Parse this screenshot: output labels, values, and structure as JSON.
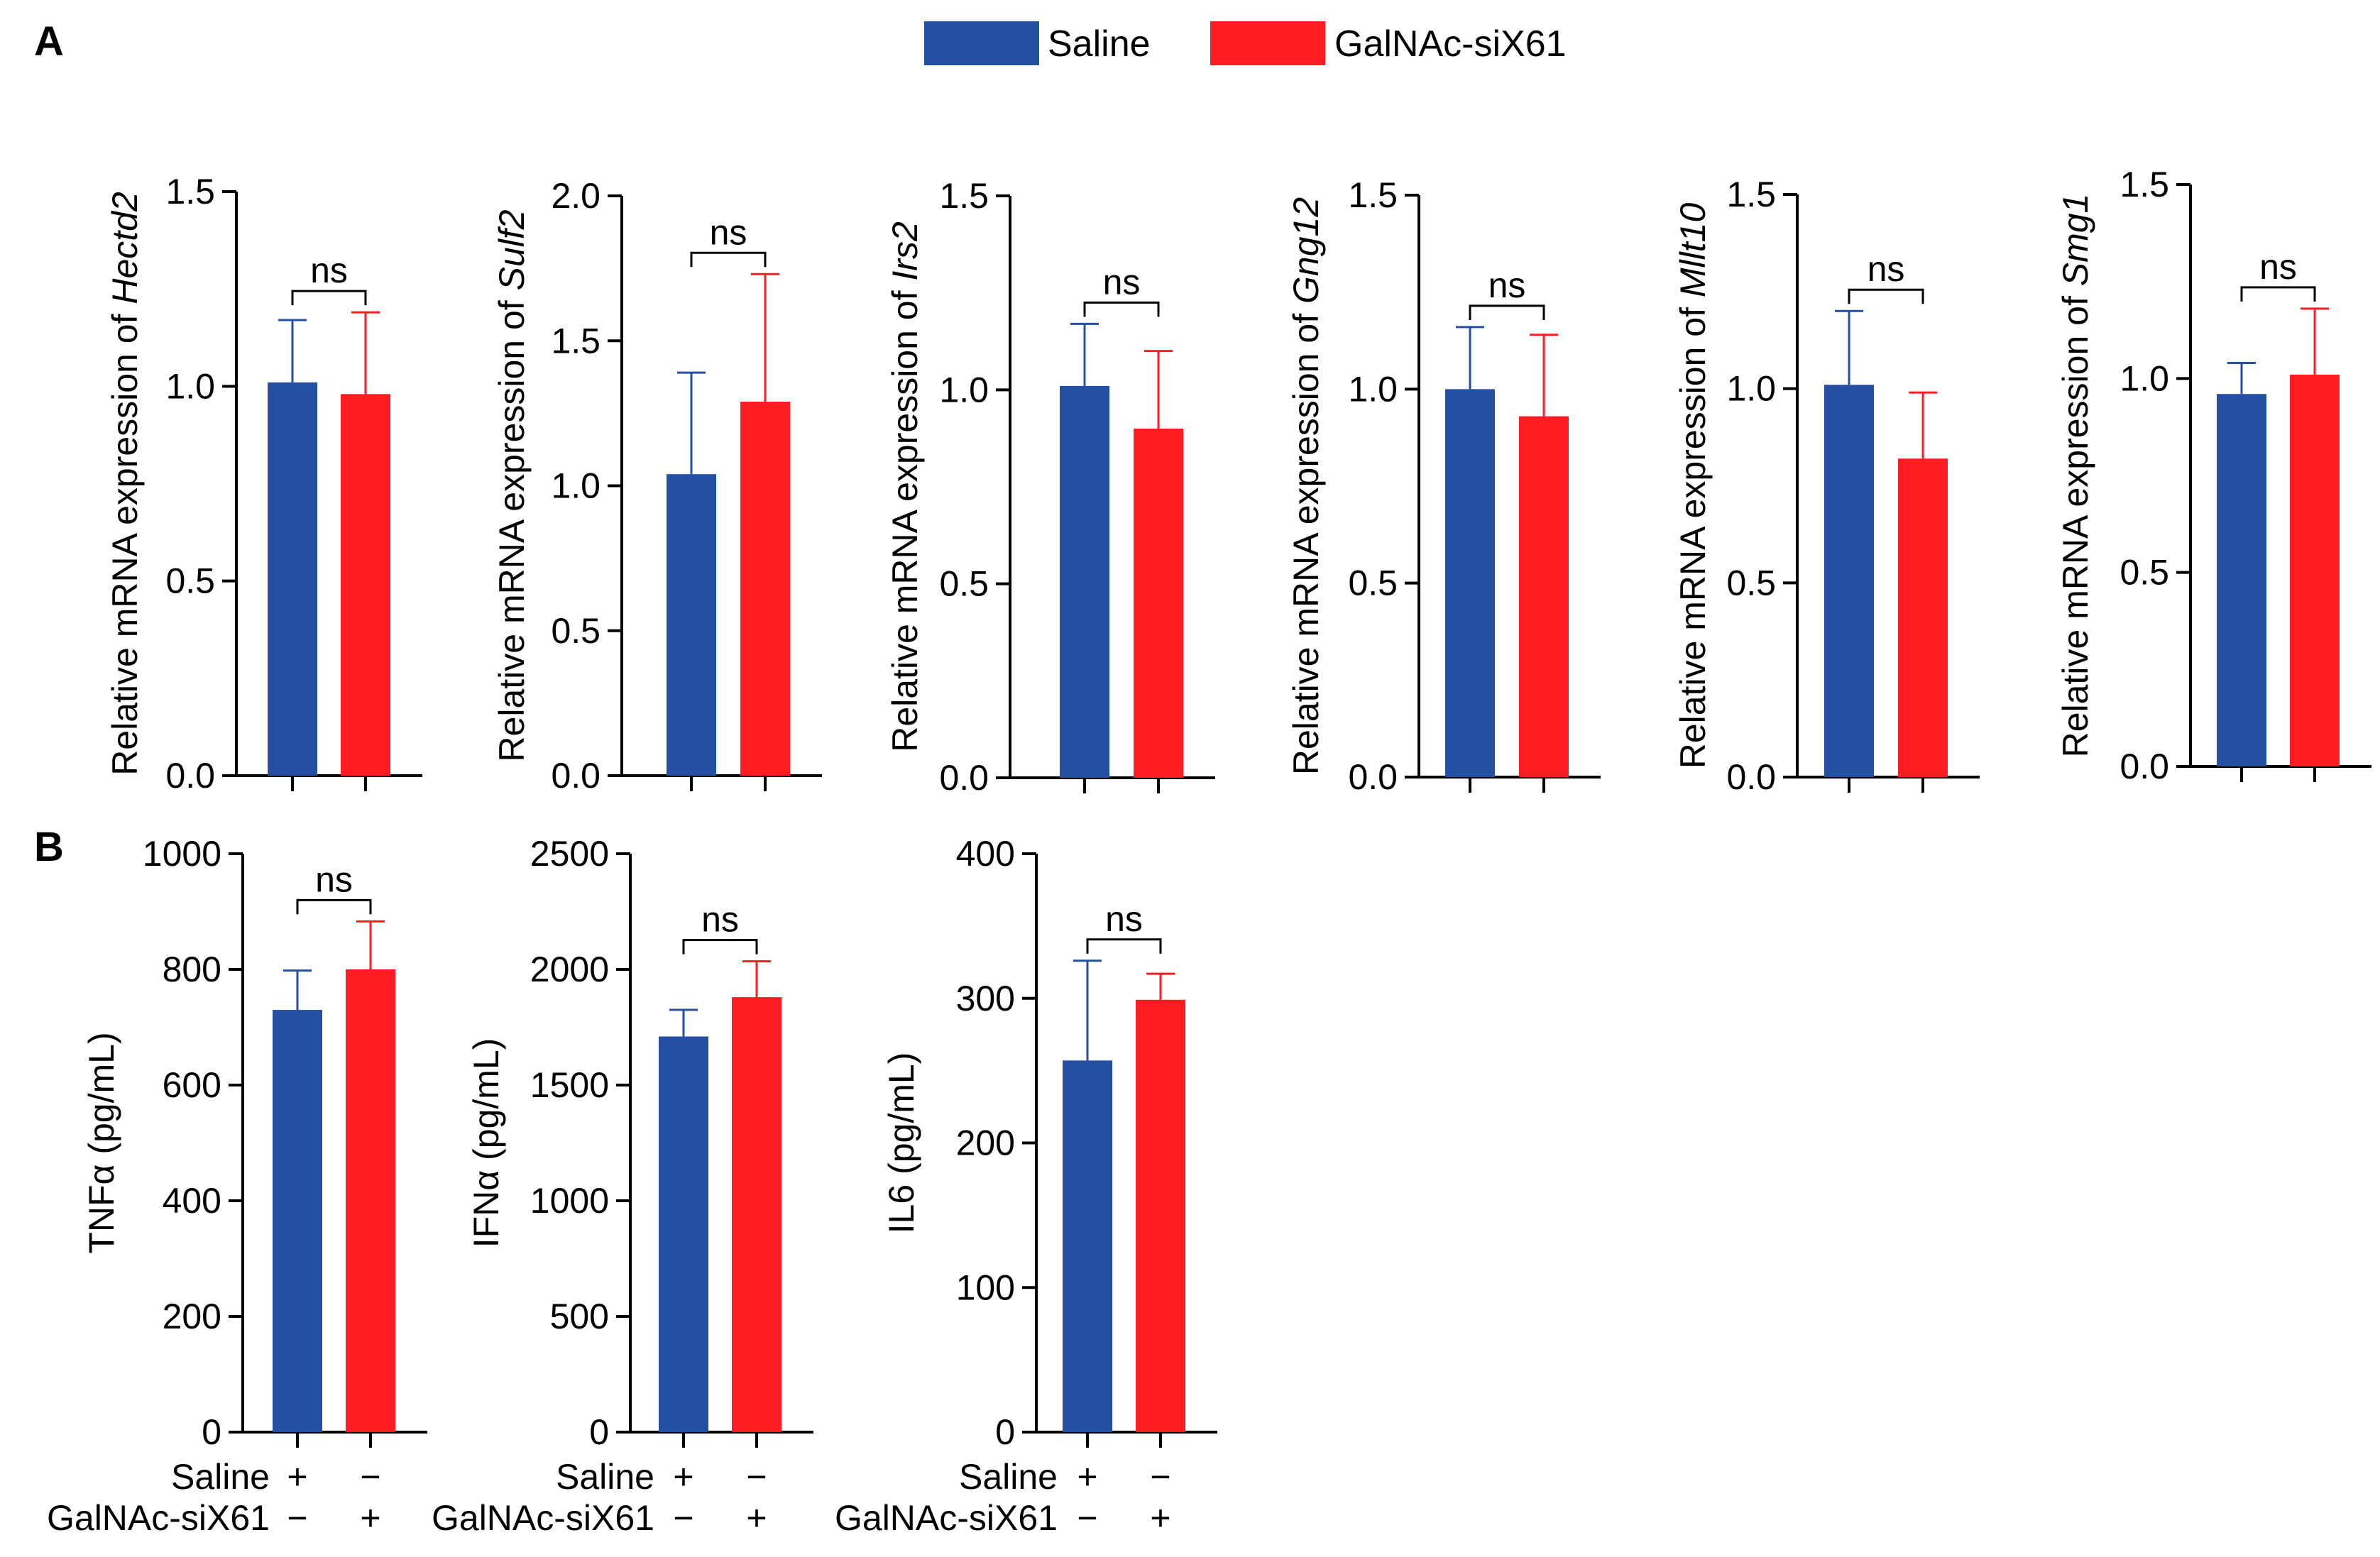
{
  "legend": [
    {
      "label": "Saline",
      "color": "#2450a4"
    },
    {
      "label": "GalNAc-siX61",
      "color": "#fe1c23"
    }
  ],
  "panels": [
    {
      "letter": "A"
    },
    {
      "letter": "B"
    }
  ],
  "chart_data": [
    {
      "panel": "A",
      "type": "bar",
      "ylabel_prefix": "Relative mRNA expression of ",
      "gene": "Hectd2",
      "categories": [
        "Saline",
        "GalNAc-siX61"
      ],
      "values": [
        1.01,
        0.98
      ],
      "errors": [
        0.16,
        0.21
      ],
      "ylim": [
        0,
        1.5
      ],
      "ticks": [
        "0.0",
        "0.5",
        "1.0",
        "1.5"
      ],
      "significance": "ns"
    },
    {
      "panel": "A",
      "type": "bar",
      "ylabel_prefix": "Relative mRNA expression of ",
      "gene": "Sulf2",
      "categories": [
        "Saline",
        "GalNAc-siX61"
      ],
      "values": [
        1.04,
        1.29
      ],
      "errors": [
        0.35,
        0.44
      ],
      "ylim": [
        0,
        2.0
      ],
      "ticks": [
        "0.0",
        "0.5",
        "1.0",
        "1.5",
        "2.0"
      ],
      "significance": "ns"
    },
    {
      "panel": "A",
      "type": "bar",
      "ylabel_prefix": "Relative mRNA expression of ",
      "gene": "Irs2",
      "categories": [
        "Saline",
        "GalNAc-siX61"
      ],
      "values": [
        1.01,
        0.9
      ],
      "errors": [
        0.16,
        0.2
      ],
      "ylim": [
        0,
        1.5
      ],
      "ticks": [
        "0.0",
        "0.5",
        "1.0",
        "1.5"
      ],
      "significance": "ns"
    },
    {
      "panel": "A",
      "type": "bar",
      "ylabel_prefix": "Relative mRNA expression of ",
      "gene": "Gng12",
      "categories": [
        "Saline",
        "GalNAc-siX61"
      ],
      "values": [
        1.0,
        0.93
      ],
      "errors": [
        0.16,
        0.21
      ],
      "ylim": [
        0,
        1.5
      ],
      "ticks": [
        "0.0",
        "0.5",
        "1.0",
        "1.5"
      ],
      "significance": "ns"
    },
    {
      "panel": "A",
      "type": "bar",
      "ylabel_prefix": "Relative mRNA expression of ",
      "gene": "Mllt10",
      "categories": [
        "Saline",
        "GalNAc-siX61"
      ],
      "values": [
        1.01,
        0.82
      ],
      "errors": [
        0.19,
        0.17
      ],
      "ylim": [
        0,
        1.5
      ],
      "ticks": [
        "0.0",
        "0.5",
        "1.0",
        "1.5"
      ],
      "significance": "ns"
    },
    {
      "panel": "A",
      "type": "bar",
      "ylabel_prefix": "Relative mRNA expression of ",
      "gene": "Smg1",
      "categories": [
        "Saline",
        "GalNAc-siX61"
      ],
      "values": [
        0.96,
        1.01
      ],
      "errors": [
        0.08,
        0.17
      ],
      "ylim": [
        0,
        1.5
      ],
      "ticks": [
        "0.0",
        "0.5",
        "1.0",
        "1.5"
      ],
      "significance": "ns"
    },
    {
      "panel": "B",
      "type": "bar",
      "ylabel": "TNFα (pg/mL)",
      "categories": [
        "Saline",
        "GalNAc-siX61"
      ],
      "values": [
        730,
        800
      ],
      "errors": [
        68,
        83
      ],
      "ylim": [
        0,
        1000
      ],
      "ticks": [
        "0",
        "200",
        "400",
        "600",
        "800",
        "1000"
      ],
      "significance": "ns",
      "group_rows": [
        {
          "label": "Saline",
          "signs": [
            "+",
            "−"
          ]
        },
        {
          "label": "GalNAc-siX61",
          "signs": [
            "−",
            "+"
          ]
        }
      ]
    },
    {
      "panel": "B",
      "type": "bar",
      "ylabel": "IFNα (pg/mL)",
      "categories": [
        "Saline",
        "GalNAc-siX61"
      ],
      "values": [
        1710,
        1880
      ],
      "errors": [
        115,
        155
      ],
      "ylim": [
        0,
        2500
      ],
      "ticks": [
        "0",
        "500",
        "1000",
        "1500",
        "2000",
        "2500"
      ],
      "significance": "ns",
      "group_rows": [
        {
          "label": "Saline",
          "signs": [
            "+",
            "−"
          ]
        },
        {
          "label": "GalNAc-siX61",
          "signs": [
            "−",
            "+"
          ]
        }
      ]
    },
    {
      "panel": "B",
      "type": "bar",
      "ylabel": "IL6 (pg/mL)",
      "categories": [
        "Saline",
        "GalNAc-siX61"
      ],
      "values": [
        257,
        299
      ],
      "errors": [
        69,
        18
      ],
      "ylim": [
        0,
        400
      ],
      "ticks": [
        "0",
        "100",
        "200",
        "300",
        "400"
      ],
      "significance": "ns",
      "group_rows": [
        {
          "label": "Saline",
          "signs": [
            "+",
            "−"
          ]
        },
        {
          "label": "GalNAc-siX61",
          "signs": [
            "−",
            "+"
          ]
        }
      ]
    }
  ]
}
